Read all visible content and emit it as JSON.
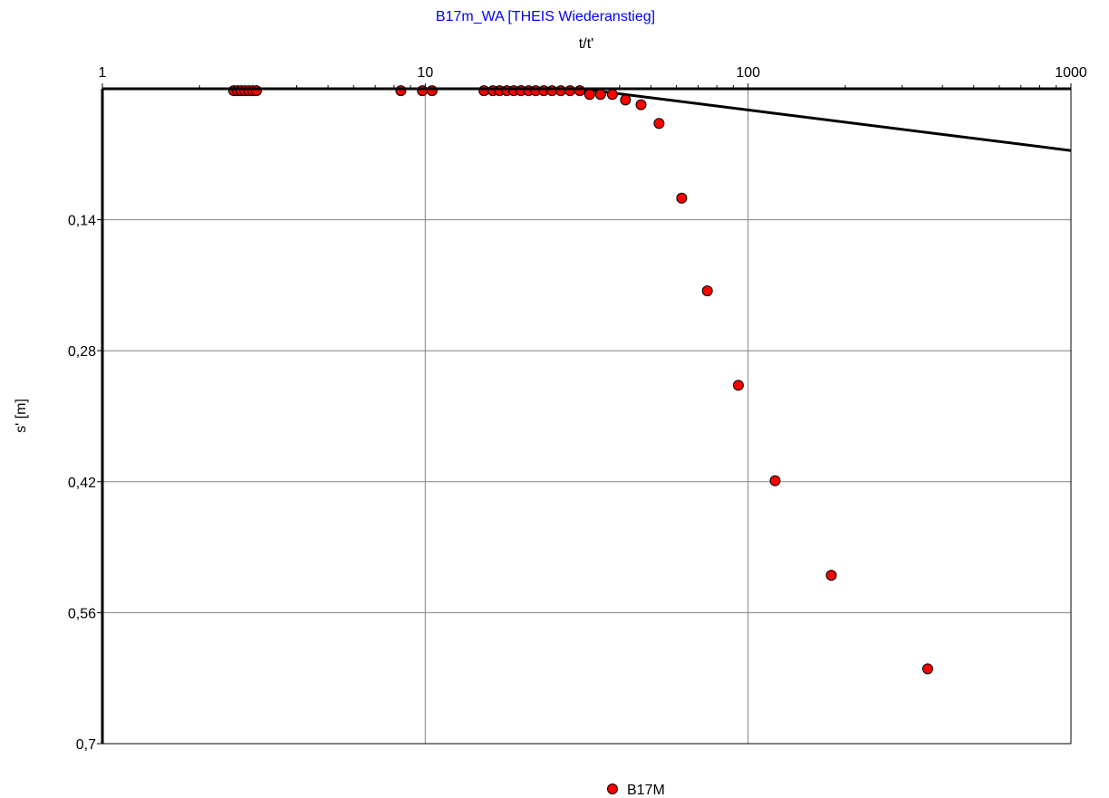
{
  "chart_data": {
    "type": "scatter",
    "title": "B17m_WA [THEIS Wiederanstieg]",
    "xlabel": "t/t'",
    "ylabel": "s' [m]",
    "x_scale": "log",
    "xlim": [
      1,
      1000
    ],
    "ylim": [
      0,
      0.7
    ],
    "y_inverted": true,
    "x_axis_position": "top",
    "x_ticks": [
      "1",
      "10",
      "100",
      "1000"
    ],
    "y_ticks": [
      "0,14",
      "0,28",
      "0,42",
      "0,56",
      "0,7"
    ],
    "grid": true,
    "legend_position": "bottom",
    "colors": {
      "title": "#0000ff",
      "marker": "#ff0000",
      "marker_edge": "#000000",
      "line": "#000000",
      "grid": "#808080"
    },
    "series": [
      {
        "name": "B17M",
        "points": [
          [
            2.55,
            0.002
          ],
          [
            2.62,
            0.002
          ],
          [
            2.69,
            0.002
          ],
          [
            2.76,
            0.002
          ],
          [
            2.84,
            0.002
          ],
          [
            2.92,
            0.002
          ],
          [
            3.0,
            0.002
          ],
          [
            8.4,
            0.002
          ],
          [
            9.8,
            0.002
          ],
          [
            10.5,
            0.002
          ],
          [
            15.2,
            0.002
          ],
          [
            16.2,
            0.002
          ],
          [
            17.0,
            0.002
          ],
          [
            17.9,
            0.002
          ],
          [
            18.8,
            0.002
          ],
          [
            19.8,
            0.002
          ],
          [
            20.9,
            0.002
          ],
          [
            22.0,
            0.002
          ],
          [
            23.3,
            0.002
          ],
          [
            24.7,
            0.002
          ],
          [
            26.3,
            0.002
          ],
          [
            28.1,
            0.002
          ],
          [
            30.1,
            0.002
          ],
          [
            32.3,
            0.006
          ],
          [
            34.9,
            0.006
          ],
          [
            38.0,
            0.006
          ],
          [
            41.7,
            0.012
          ],
          [
            46.6,
            0.017
          ],
          [
            53.0,
            0.037
          ],
          [
            62.3,
            0.117
          ],
          [
            74.8,
            0.216
          ],
          [
            93.3,
            0.317
          ],
          [
            121.3,
            0.419
          ],
          [
            181.0,
            0.52
          ],
          [
            360.0,
            0.62
          ]
        ]
      },
      {
        "name": "",
        "type": "line",
        "points": [
          [
            1,
            0.0
          ],
          [
            30,
            0.0
          ],
          [
            1000,
            0.066
          ]
        ]
      }
    ]
  }
}
